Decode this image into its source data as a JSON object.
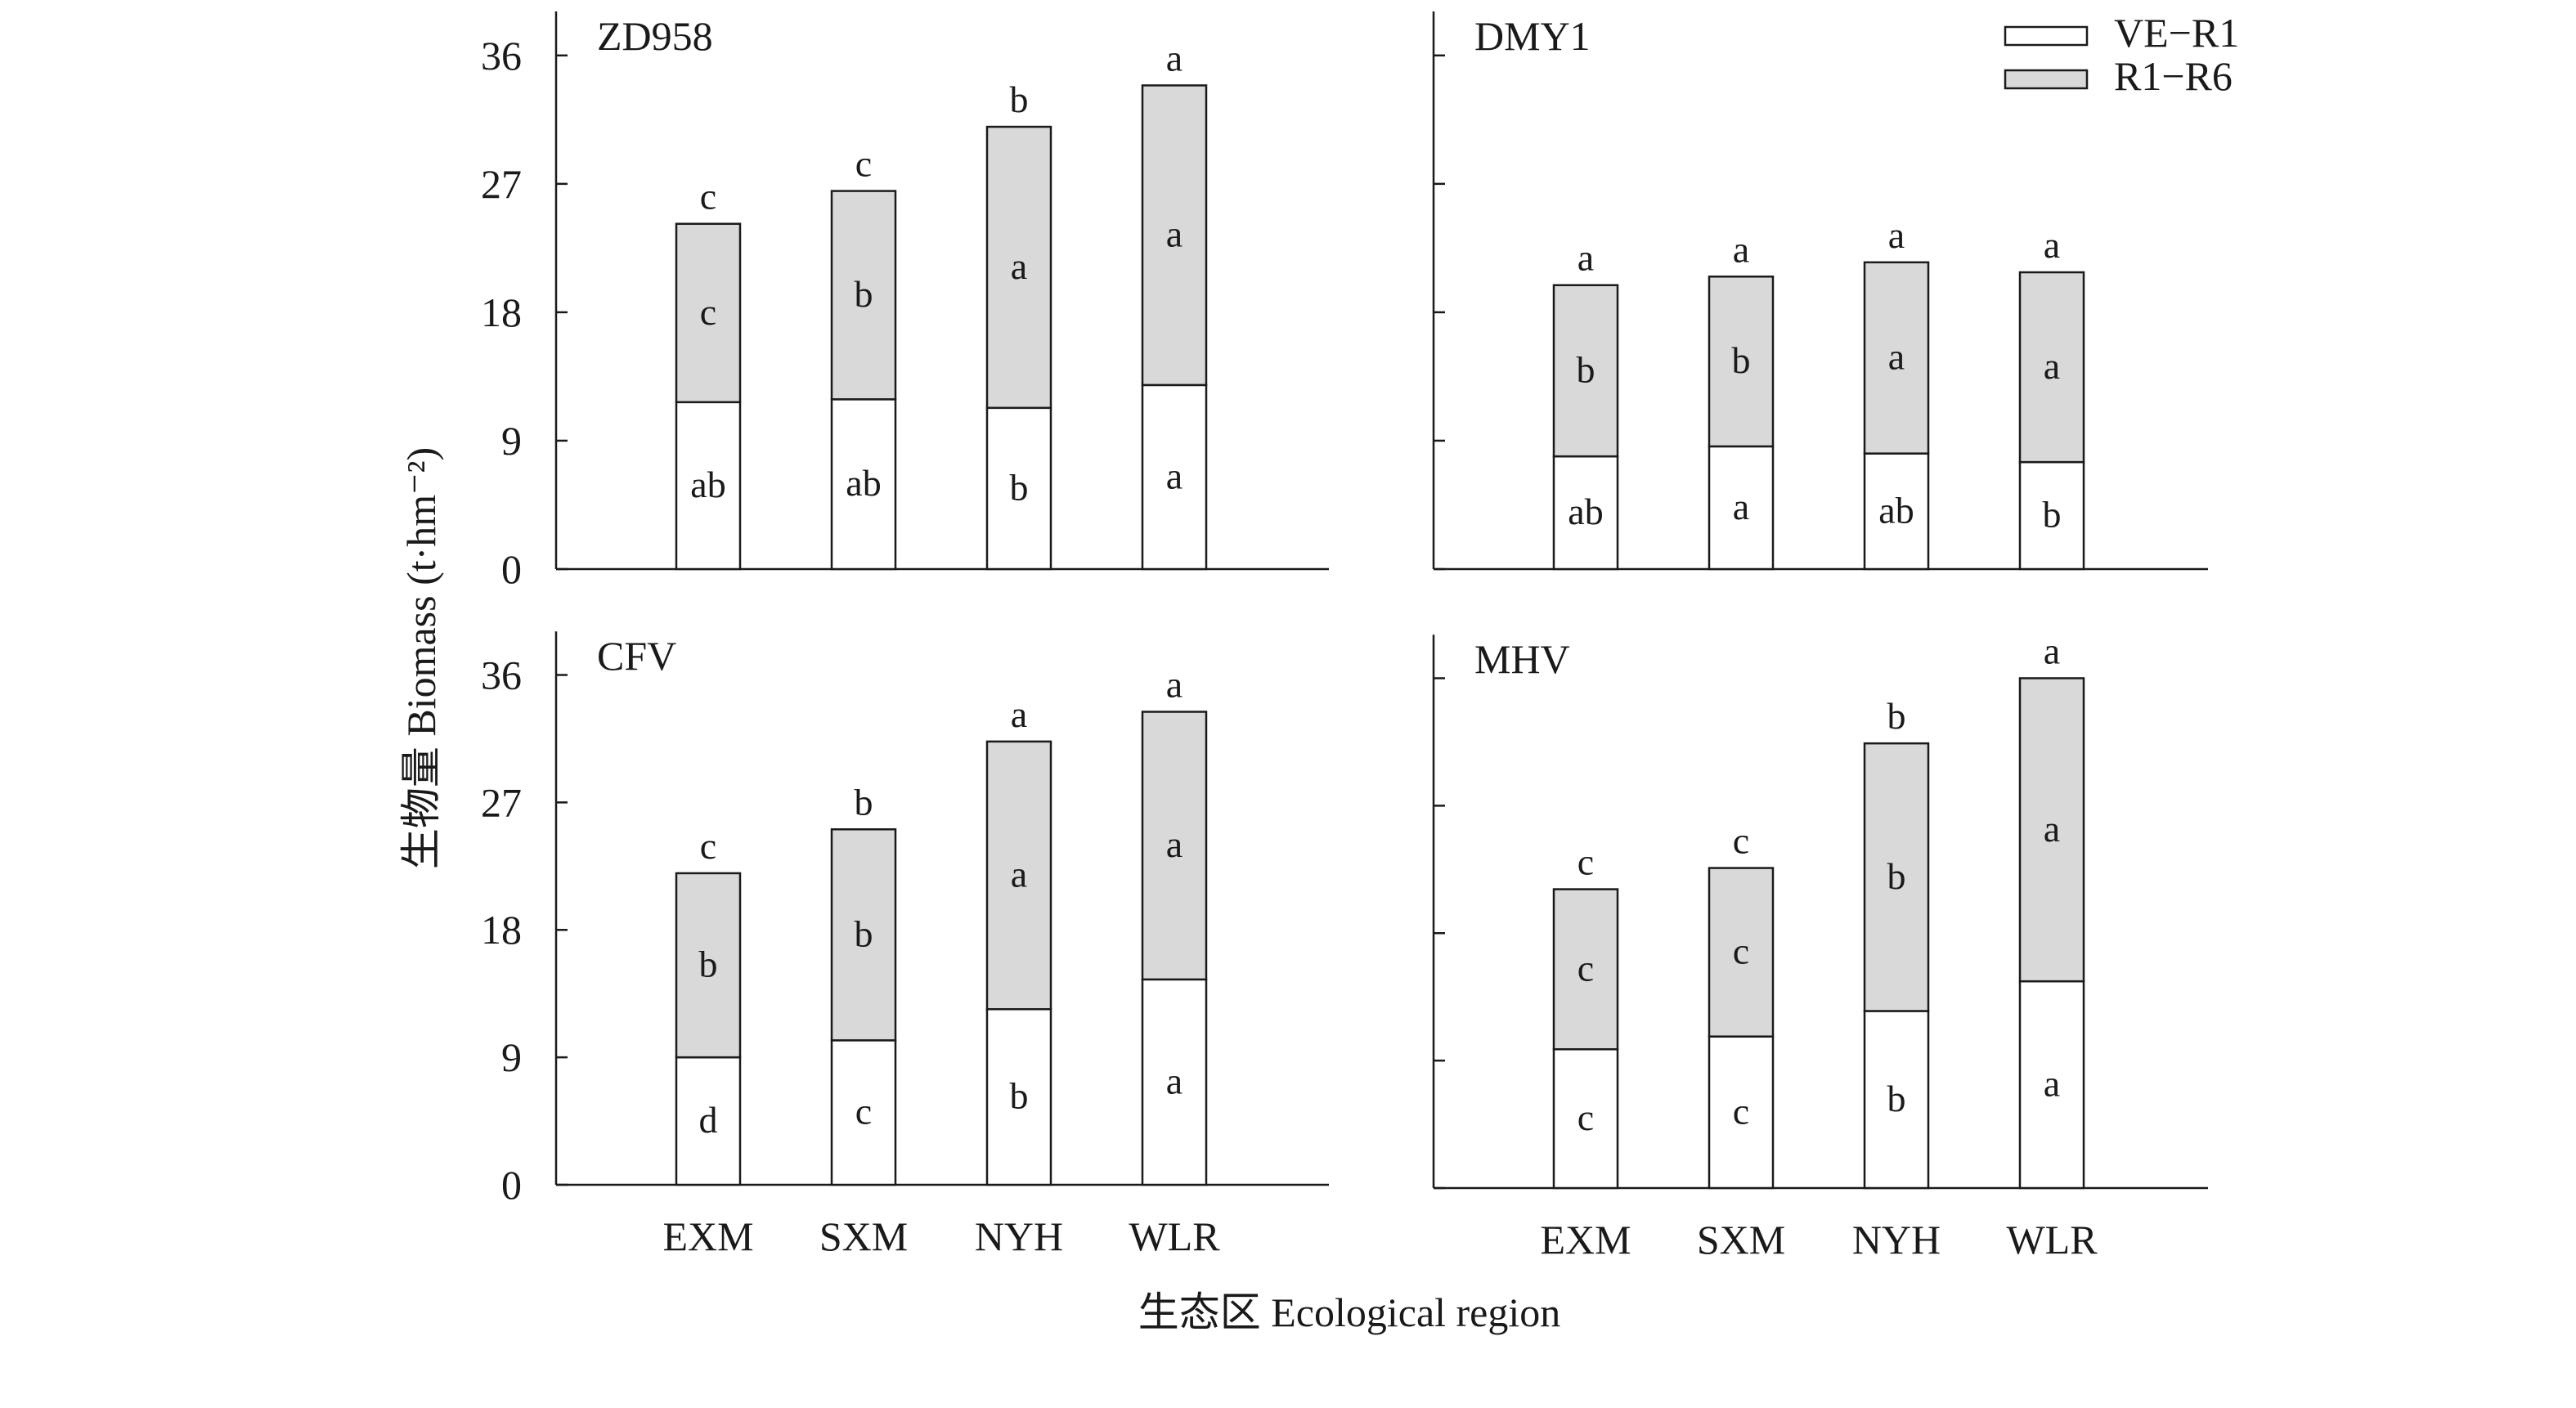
{
  "chart_data": {
    "type": "bar",
    "stacked": true,
    "xlabel": "生态区 Ecological region",
    "ylabel": "生物量 Biomass (t·hm⁻²)",
    "ylim": [
      0,
      40
    ],
    "yticks": [
      "0",
      "9",
      "18",
      "27",
      "36"
    ],
    "grid": false,
    "legend": {
      "position": "top-right",
      "entries": [
        {
          "name": "VE−R1",
          "color": "#ffffff"
        },
        {
          "name": "R1−R6",
          "color": "#d9d9d9"
        }
      ]
    },
    "categories": [
      "EXM",
      "SXM",
      "NYH",
      "WLR"
    ],
    "panels": [
      {
        "title": "ZD958",
        "show_yticks": true,
        "show_xticks": false,
        "series": [
          {
            "name": "VE−R1",
            "values": [
              11.7,
              11.9,
              11.3,
              12.9
            ],
            "letters": [
              "ab",
              "ab",
              "b",
              "a"
            ]
          },
          {
            "name": "R1−R6",
            "values": [
              12.5,
              14.6,
              19.7,
              21.0
            ],
            "letters": [
              "c",
              "b",
              "a",
              "a"
            ]
          }
        ],
        "total_letters": [
          "c",
          "c",
          "b",
          "a"
        ]
      },
      {
        "title": "DMY1",
        "show_yticks": false,
        "show_xticks": false,
        "series": [
          {
            "name": "VE−R1",
            "values": [
              7.9,
              8.6,
              8.1,
              7.5
            ],
            "letters": [
              "ab",
              "a",
              "ab",
              "b"
            ]
          },
          {
            "name": "R1−R6",
            "values": [
              12.0,
              11.9,
              13.4,
              13.3
            ],
            "letters": [
              "b",
              "b",
              "a",
              "a"
            ]
          }
        ],
        "total_letters": [
          "a",
          "a",
          "a",
          "a"
        ]
      },
      {
        "title": "CFV",
        "show_yticks": true,
        "show_xticks": true,
        "series": [
          {
            "name": "VE−R1",
            "values": [
              9.0,
              10.2,
              12.4,
              14.5
            ],
            "letters": [
              "d",
              "c",
              "b",
              "a"
            ]
          },
          {
            "name": "R1−R6",
            "values": [
              13.0,
              14.9,
              18.9,
              18.9
            ],
            "letters": [
              "b",
              "b",
              "a",
              "a"
            ]
          }
        ],
        "total_letters": [
          "c",
          "b",
          "a",
          "a"
        ]
      },
      {
        "title": "MHV",
        "show_yticks": false,
        "show_xticks": true,
        "series": [
          {
            "name": "VE−R1",
            "values": [
              9.8,
              10.7,
              12.5,
              14.6
            ],
            "letters": [
              "c",
              "c",
              "b",
              "a"
            ]
          },
          {
            "name": "R1−R6",
            "values": [
              11.3,
              11.9,
              18.9,
              21.4
            ],
            "letters": [
              "c",
              "c",
              "b",
              "a"
            ]
          }
        ],
        "total_letters": [
          "c",
          "c",
          "b",
          "a"
        ]
      }
    ]
  }
}
